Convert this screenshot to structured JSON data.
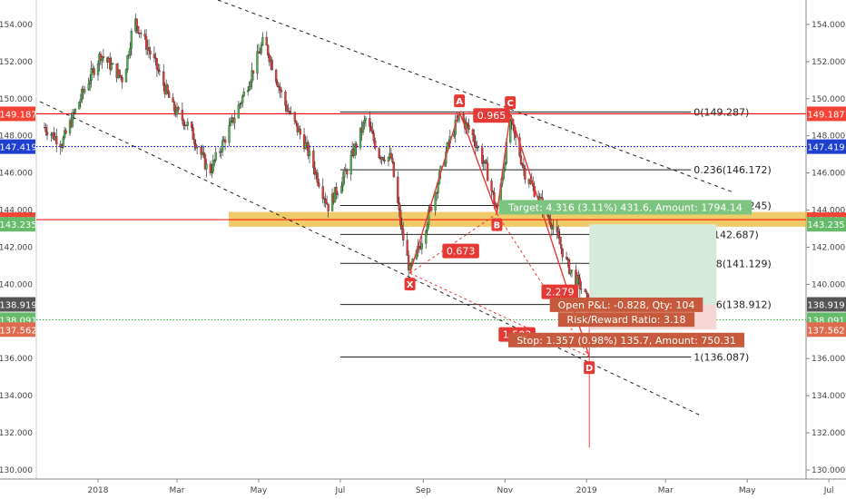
{
  "chart_data": {
    "type": "candlestick",
    "y_axis": {
      "min": 130,
      "max": 155,
      "ticks": [
        "130.000",
        "132.000",
        "134.000",
        "136.000",
        "138.000",
        "140.000",
        "142.000",
        "144.000",
        "146.000",
        "148.000",
        "150.000",
        "152.000",
        "154.000"
      ]
    },
    "x_axis": {
      "labels": [
        "2018",
        "Mar",
        "May",
        "Jul",
        "Sep",
        "Nov",
        "2019",
        "Mar",
        "May",
        "Jul"
      ]
    },
    "colors": {
      "up": "#4caf50",
      "down": "#e53935",
      "wick": "#222222",
      "red_line": "#ff0000",
      "blue_line": "#0000ff",
      "green_dotted": "#3cb043",
      "zone": "#e8b52a",
      "profit": "#d6eadb",
      "loss": "#f6d6d6"
    },
    "horizontal_levels": [
      {
        "price": 149.187,
        "style": "solid",
        "color": "#ff0000"
      },
      {
        "price": 147.419,
        "style": "dotted",
        "color": "#0000ff"
      },
      {
        "price": 143.484,
        "style": "solid",
        "color": "#ff0000"
      },
      {
        "price": 138.091,
        "style": "dotted",
        "color": "#3cb043"
      }
    ],
    "price_tags": [
      {
        "text": "149.187",
        "price": 149.187,
        "color": "#f44336"
      },
      {
        "text": "147.419",
        "price": 147.419,
        "color": "#1f3fd1"
      },
      {
        "text": "143.484",
        "price": 143.484,
        "color": "#f44336"
      },
      {
        "text": "143.235",
        "price": 143.235,
        "color": "#66bb6a"
      },
      {
        "text": "138.919",
        "price": 138.919,
        "color": "#555555"
      },
      {
        "text": "138.091",
        "price": 138.091,
        "color": "#66bb6a"
      },
      {
        "text": "137.562",
        "price": 137.562,
        "color": "#e06a4e"
      }
    ],
    "fib_levels": [
      {
        "label": "0(149.287)",
        "price": 149.287
      },
      {
        "label": "0.236(146.172)",
        "price": 146.172
      },
      {
        "label": "0.382(144.245)",
        "price": 144.245
      },
      {
        "label": "0.5(142.687)",
        "price": 142.687
      },
      {
        "label": "0.618(141.129)",
        "price": 141.129
      },
      {
        "label": "0.786(138.912)",
        "price": 138.912
      },
      {
        "label": "1(136.087)",
        "price": 136.087
      }
    ],
    "pattern_points": [
      {
        "label": "X",
        "date": "2018-08-22",
        "price": 140.6
      },
      {
        "label": "A",
        "date": "2018-09-28",
        "price": 149.3
      },
      {
        "label": "B",
        "date": "2018-10-26",
        "price": 143.8
      },
      {
        "label": "C",
        "date": "2018-11-05",
        "price": 149.2
      },
      {
        "label": "D",
        "date": "2019-01-03",
        "price": 136.1
      }
    ],
    "ratios": [
      {
        "text": "0.673",
        "date": "2018-09-29",
        "price": 141.8
      },
      {
        "text": "0.965",
        "date": "2018-10-22",
        "price": 149.1
      },
      {
        "text": "2.279",
        "date": "2018-12-12",
        "price": 139.6
      },
      {
        "text": "1.503",
        "date": "2018-11-10",
        "price": 137.3
      }
    ],
    "position": {
      "target_text": "Target: 4.316 (3.11%) 431.6, Amount: 1794.14",
      "pnl_text": "Open P&L: -0.828, Qty: 104",
      "rr_text": "Risk/Reward Ratio: 3.18",
      "stop_text": "Stop: 1.357 (0.98%) 135.7, Amount: 750.31"
    }
  }
}
